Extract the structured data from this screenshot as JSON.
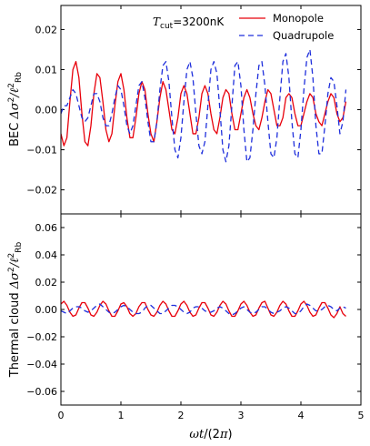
{
  "chart_data": [
    {
      "type": "line",
      "panel": "top",
      "ylabel": "BEC Δσ²/ℓ²Rb",
      "annotation": "T_cut = 3200nK",
      "annotation_parts": {
        "symbol": "T",
        "subscript": "cut",
        "value": "=3200nK"
      },
      "xlim": [
        0,
        5
      ],
      "ylim": [
        -0.026,
        0.026
      ],
      "yticks": [
        -0.02,
        -0.01,
        0.0,
        0.01,
        0.02
      ],
      "ytick_labels": [
        "−0.02",
        "−0.01",
        "0.00",
        "0.01",
        "0.02"
      ],
      "xticks": [
        0,
        1,
        2,
        3,
        4,
        5
      ],
      "legend": {
        "placement": "top-right",
        "entries": [
          "Monopole",
          "Quadrupole"
        ]
      },
      "series": [
        {
          "name": "Monopole",
          "color": "#e8000b",
          "style": "solid",
          "x": [
            0.0,
            0.05,
            0.1,
            0.15,
            0.2,
            0.25,
            0.3,
            0.35,
            0.4,
            0.45,
            0.5,
            0.55,
            0.6,
            0.65,
            0.7,
            0.75,
            0.8,
            0.85,
            0.9,
            0.95,
            1.0,
            1.05,
            1.1,
            1.15,
            1.2,
            1.25,
            1.3,
            1.35,
            1.4,
            1.45,
            1.5,
            1.55,
            1.6,
            1.65,
            1.7,
            1.75,
            1.8,
            1.85,
            1.9,
            1.95,
            2.0,
            2.05,
            2.1,
            2.15,
            2.2,
            2.25,
            2.3,
            2.35,
            2.4,
            2.45,
            2.5,
            2.55,
            2.6,
            2.65,
            2.7,
            2.75,
            2.8,
            2.85,
            2.9,
            2.95,
            3.0,
            3.05,
            3.1,
            3.15,
            3.2,
            3.25,
            3.3,
            3.35,
            3.4,
            3.45,
            3.5,
            3.55,
            3.6,
            3.65,
            3.7,
            3.75,
            3.8,
            3.85,
            3.9,
            3.95,
            4.0,
            4.05,
            4.1,
            4.15,
            4.2,
            4.25,
            4.3,
            4.35,
            4.4,
            4.45,
            4.5,
            4.55,
            4.6,
            4.65,
            4.7,
            4.75
          ],
          "y": [
            -0.006,
            -0.009,
            -0.007,
            0.002,
            0.01,
            0.012,
            0.008,
            -0.001,
            -0.008,
            -0.009,
            -0.004,
            0.004,
            0.009,
            0.008,
            0.002,
            -0.005,
            -0.008,
            -0.006,
            0.001,
            0.007,
            0.009,
            0.005,
            -0.002,
            -0.007,
            -0.007,
            -0.002,
            0.004,
            0.007,
            0.005,
            -0.001,
            -0.006,
            -0.008,
            -0.003,
            0.003,
            0.007,
            0.005,
            0.0,
            -0.005,
            -0.006,
            -0.002,
            0.004,
            0.006,
            0.004,
            -0.001,
            -0.006,
            -0.006,
            -0.002,
            0.004,
            0.006,
            0.004,
            -0.001,
            -0.005,
            -0.006,
            -0.002,
            0.003,
            0.005,
            0.004,
            -0.001,
            -0.005,
            -0.005,
            -0.001,
            0.003,
            0.005,
            0.003,
            -0.001,
            -0.004,
            -0.005,
            -0.002,
            0.002,
            0.005,
            0.004,
            0.0,
            -0.004,
            -0.004,
            -0.002,
            0.003,
            0.004,
            0.003,
            -0.001,
            -0.004,
            -0.004,
            -0.001,
            0.002,
            0.004,
            0.003,
            -0.001,
            -0.003,
            -0.004,
            -0.001,
            0.002,
            0.004,
            0.003,
            -0.001,
            -0.003,
            -0.002,
            0.002
          ]
        },
        {
          "name": "Quadrupole",
          "color": "#1f2fdc",
          "style": "dashed",
          "x": [
            0.0,
            0.05,
            0.1,
            0.15,
            0.2,
            0.25,
            0.3,
            0.35,
            0.4,
            0.45,
            0.5,
            0.55,
            0.6,
            0.65,
            0.7,
            0.75,
            0.8,
            0.85,
            0.9,
            0.95,
            1.0,
            1.05,
            1.1,
            1.15,
            1.2,
            1.25,
            1.3,
            1.35,
            1.4,
            1.45,
            1.5,
            1.55,
            1.6,
            1.65,
            1.7,
            1.75,
            1.8,
            1.85,
            1.9,
            1.95,
            2.0,
            2.05,
            2.1,
            2.15,
            2.2,
            2.25,
            2.3,
            2.35,
            2.4,
            2.45,
            2.5,
            2.55,
            2.6,
            2.65,
            2.7,
            2.75,
            2.8,
            2.85,
            2.9,
            2.95,
            3.0,
            3.05,
            3.1,
            3.15,
            3.2,
            3.25,
            3.3,
            3.35,
            3.4,
            3.45,
            3.5,
            3.55,
            3.6,
            3.65,
            3.7,
            3.75,
            3.8,
            3.85,
            3.9,
            3.95,
            4.0,
            4.05,
            4.1,
            4.15,
            4.2,
            4.25,
            4.3,
            4.35,
            4.4,
            4.45,
            4.5,
            4.55,
            4.6,
            4.65,
            4.7,
            4.75
          ],
          "y": [
            -0.001,
            0.001,
            0.001,
            0.003,
            0.005,
            0.004,
            0.001,
            -0.002,
            -0.003,
            -0.002,
            0.001,
            0.004,
            0.004,
            0.002,
            -0.002,
            -0.004,
            -0.004,
            -0.001,
            0.003,
            0.006,
            0.005,
            0.001,
            -0.004,
            -0.006,
            -0.004,
            0.001,
            0.006,
            0.007,
            0.003,
            -0.003,
            -0.008,
            -0.008,
            -0.003,
            0.005,
            0.011,
            0.012,
            0.007,
            -0.002,
            -0.01,
            -0.012,
            -0.007,
            0.002,
            0.01,
            0.012,
            0.008,
            -0.001,
            -0.009,
            -0.011,
            -0.008,
            0.001,
            0.01,
            0.012,
            0.009,
            0.0,
            -0.01,
            -0.013,
            -0.009,
            0.001,
            0.011,
            0.012,
            0.006,
            -0.005,
            -0.013,
            -0.012,
            -0.005,
            0.004,
            0.011,
            0.012,
            0.006,
            -0.003,
            -0.011,
            -0.012,
            -0.007,
            0.003,
            0.012,
            0.014,
            0.008,
            -0.003,
            -0.011,
            -0.012,
            -0.005,
            0.005,
            0.013,
            0.015,
            0.008,
            -0.004,
            -0.011,
            -0.011,
            -0.004,
            0.004,
            0.008,
            0.007,
            0.001,
            -0.006,
            -0.003,
            0.005
          ]
        }
      ]
    },
    {
      "type": "line",
      "panel": "bottom",
      "ylabel": "Thermal cloud Δσ²/ℓ²Rb",
      "xlabel": "ωt/(2π)",
      "xlim": [
        0,
        5
      ],
      "ylim": [
        -0.07,
        0.07
      ],
      "yticks": [
        -0.06,
        -0.04,
        -0.02,
        0.0,
        0.02,
        0.04,
        0.06
      ],
      "ytick_labels": [
        "−0.06",
        "−0.04",
        "−0.02",
        "0.00",
        "0.02",
        "0.04",
        "0.06"
      ],
      "xticks": [
        0,
        1,
        2,
        3,
        4,
        5
      ],
      "xtick_labels": [
        "0",
        "1",
        "2",
        "3",
        "4",
        "5"
      ],
      "series": [
        {
          "name": "Monopole",
          "color": "#e8000b",
          "style": "solid",
          "x": [
            0.0,
            0.05,
            0.1,
            0.15,
            0.2,
            0.25,
            0.3,
            0.35,
            0.4,
            0.45,
            0.5,
            0.55,
            0.6,
            0.65,
            0.7,
            0.75,
            0.8,
            0.85,
            0.9,
            0.95,
            1.0,
            1.05,
            1.1,
            1.15,
            1.2,
            1.25,
            1.3,
            1.35,
            1.4,
            1.45,
            1.5,
            1.55,
            1.6,
            1.65,
            1.7,
            1.75,
            1.8,
            1.85,
            1.9,
            1.95,
            2.0,
            2.05,
            2.1,
            2.15,
            2.2,
            2.25,
            2.3,
            2.35,
            2.4,
            2.45,
            2.5,
            2.55,
            2.6,
            2.65,
            2.7,
            2.75,
            2.8,
            2.85,
            2.9,
            2.95,
            3.0,
            3.05,
            3.1,
            3.15,
            3.2,
            3.25,
            3.3,
            3.35,
            3.4,
            3.45,
            3.5,
            3.55,
            3.6,
            3.65,
            3.7,
            3.75,
            3.8,
            3.85,
            3.9,
            3.95,
            4.0,
            4.05,
            4.1,
            4.15,
            4.2,
            4.25,
            4.3,
            4.35,
            4.4,
            4.45,
            4.5,
            4.55,
            4.6,
            4.65,
            4.7,
            4.75
          ],
          "y": [
            0.004,
            0.006,
            0.003,
            -0.002,
            -0.005,
            -0.004,
            0.001,
            0.005,
            0.005,
            0.001,
            -0.004,
            -0.005,
            -0.002,
            0.003,
            0.006,
            0.004,
            -0.001,
            -0.005,
            -0.005,
            -0.001,
            0.004,
            0.005,
            0.002,
            -0.003,
            -0.005,
            -0.003,
            0.002,
            0.005,
            0.005,
            0.0,
            -0.004,
            -0.005,
            -0.002,
            0.003,
            0.006,
            0.004,
            -0.001,
            -0.005,
            -0.005,
            -0.001,
            0.004,
            0.006,
            0.003,
            -0.002,
            -0.005,
            -0.004,
            0.001,
            0.005,
            0.005,
            0.001,
            -0.004,
            -0.005,
            -0.002,
            0.003,
            0.006,
            0.004,
            -0.001,
            -0.005,
            -0.005,
            -0.001,
            0.004,
            0.006,
            0.003,
            -0.002,
            -0.005,
            -0.004,
            0.001,
            0.005,
            0.006,
            0.001,
            -0.004,
            -0.005,
            -0.002,
            0.003,
            0.006,
            0.004,
            -0.001,
            -0.005,
            -0.005,
            -0.001,
            0.004,
            0.006,
            0.003,
            -0.002,
            -0.005,
            -0.004,
            0.001,
            0.005,
            0.005,
            0.001,
            -0.004,
            -0.006,
            -0.003,
            0.002,
            -0.003,
            -0.005
          ]
        },
        {
          "name": "Quadrupole",
          "color": "#1f2fdc",
          "style": "dashed",
          "x": [
            0.0,
            0.05,
            0.1,
            0.15,
            0.2,
            0.25,
            0.3,
            0.35,
            0.4,
            0.45,
            0.5,
            0.55,
            0.6,
            0.65,
            0.7,
            0.75,
            0.8,
            0.85,
            0.9,
            0.95,
            1.0,
            1.05,
            1.1,
            1.15,
            1.2,
            1.25,
            1.3,
            1.35,
            1.4,
            1.45,
            1.5,
            1.55,
            1.6,
            1.65,
            1.7,
            1.75,
            1.8,
            1.85,
            1.9,
            1.95,
            2.0,
            2.05,
            2.1,
            2.15,
            2.2,
            2.25,
            2.3,
            2.35,
            2.4,
            2.45,
            2.5,
            2.55,
            2.6,
            2.65,
            2.7,
            2.75,
            2.8,
            2.85,
            2.9,
            2.95,
            3.0,
            3.05,
            3.1,
            3.15,
            3.2,
            3.25,
            3.3,
            3.35,
            3.4,
            3.45,
            3.5,
            3.55,
            3.6,
            3.65,
            3.7,
            3.75,
            3.8,
            3.85,
            3.9,
            3.95,
            4.0,
            4.05,
            4.1,
            4.15,
            4.2,
            4.25,
            4.3,
            4.35,
            4.4,
            4.45,
            4.5,
            4.55,
            4.6,
            4.65,
            4.7,
            4.75
          ],
          "y": [
            -0.001,
            -0.002,
            -0.003,
            -0.001,
            0.001,
            0.002,
            0.002,
            0.001,
            -0.001,
            -0.002,
            -0.001,
            0.001,
            0.003,
            0.004,
            0.002,
            0.0,
            -0.002,
            -0.003,
            -0.002,
            0.0,
            0.002,
            0.003,
            0.002,
            0.0,
            -0.002,
            -0.003,
            -0.003,
            -0.002,
            0.001,
            0.003,
            0.003,
            0.001,
            -0.001,
            -0.003,
            -0.003,
            -0.001,
            0.001,
            0.003,
            0.003,
            0.002,
            0.0,
            -0.002,
            -0.003,
            -0.002,
            0.001,
            0.002,
            0.002,
            0.001,
            -0.001,
            -0.002,
            -0.002,
            -0.001,
            0.001,
            0.002,
            0.001,
            -0.001,
            -0.003,
            -0.004,
            -0.003,
            -0.001,
            0.001,
            0.002,
            0.0,
            -0.002,
            -0.003,
            -0.002,
            0.0,
            0.002,
            0.002,
            0.0,
            -0.002,
            -0.003,
            -0.002,
            -0.001,
            0.001,
            0.002,
            0.001,
            -0.001,
            -0.003,
            -0.003,
            -0.001,
            0.002,
            0.004,
            0.003,
            0.001,
            -0.001,
            -0.001,
            0.0,
            0.002,
            0.003,
            0.002,
            0.0,
            -0.001,
            0.001,
            0.002,
            0.001
          ]
        }
      ]
    }
  ]
}
